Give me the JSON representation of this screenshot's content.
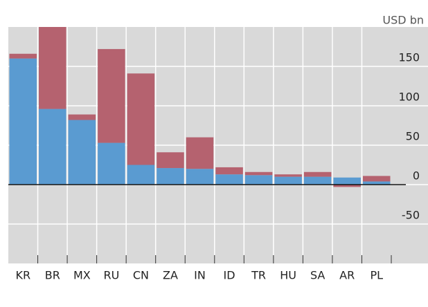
{
  "chart_data": {
    "type": "stacked_bar",
    "y_axis_label": "USD bn",
    "categories": [
      "KR",
      "BR",
      "MX",
      "RU",
      "CN",
      "ZA",
      "IN",
      "ID",
      "TR",
      "HU",
      "SA",
      "AR",
      "PL"
    ],
    "series": [
      {
        "color": "#5a9bd1",
        "values": [
          160,
          96,
          82,
          53,
          25,
          21,
          20,
          13,
          12,
          10,
          10,
          9,
          4
        ]
      },
      {
        "color": "#b5626f",
        "values": [
          6,
          104,
          7,
          119,
          116,
          20,
          40,
          9,
          4,
          3,
          6,
          -3,
          7
        ]
      }
    ],
    "ylim": [
      -100,
      200
    ],
    "yticks": [
      -50,
      0,
      50,
      100,
      150
    ],
    "grid": true
  }
}
